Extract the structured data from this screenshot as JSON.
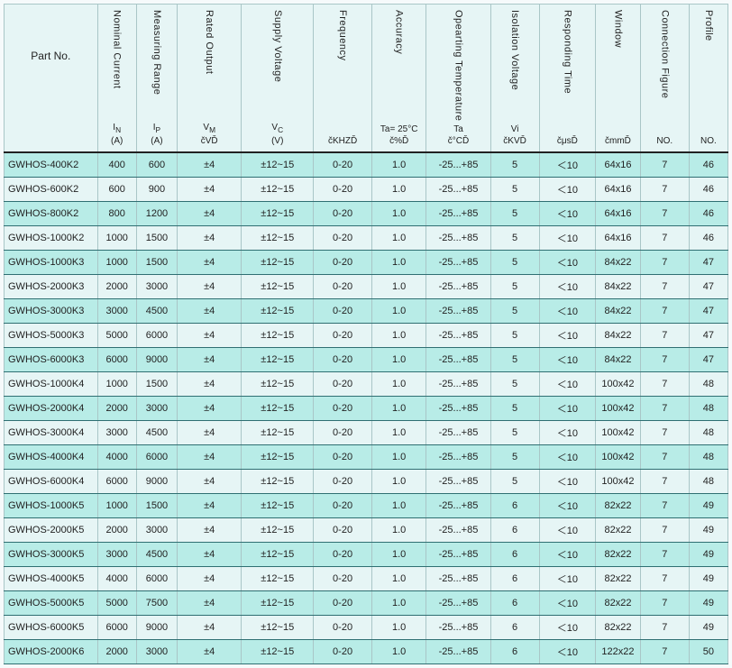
{
  "headers": [
    {
      "top": "",
      "mid": "Part No.",
      "sub": ""
    },
    {
      "top": "Nominal Current",
      "mid": "I<sub>N</sub>",
      "sub": "(A)"
    },
    {
      "top": "Measuring Range",
      "mid": "I<sub>P</sub>",
      "sub": "(A)"
    },
    {
      "top": "Rated Output",
      "mid": "V<sub>M</sub>",
      "sub": "čVĎ"
    },
    {
      "top": "Supply Voltage",
      "mid": "V<sub>C</sub>",
      "sub": "(V)"
    },
    {
      "top": "Frequency",
      "mid": "",
      "sub": "čKHZĎ"
    },
    {
      "top": "Accuracy",
      "mid": "Ta= 25°C",
      "sub": "č%Ď"
    },
    {
      "top": "Opearting Temperature",
      "mid": "Ta",
      "sub": "č°CĎ"
    },
    {
      "top": "Isolation Voltage",
      "mid": "Vi",
      "sub": "čKVĎ"
    },
    {
      "top": "Responding Time",
      "mid": "",
      "sub": "čμsĎ"
    },
    {
      "top": "Window",
      "mid": "",
      "sub": "čmmĎ"
    },
    {
      "top": "Connection Figure",
      "mid": "",
      "sub": "NO."
    },
    {
      "top": "Profile",
      "mid": "",
      "sub": "NO."
    }
  ],
  "rows": [
    [
      "GWHOS-400K2",
      "400",
      "600",
      "±4",
      "±12~15",
      "0-20",
      "1.0",
      "-25...+85",
      "5",
      "＜10",
      "64x16",
      "7",
      "46"
    ],
    [
      "GWHOS-600K2",
      "600",
      "900",
      "±4",
      "±12~15",
      "0-20",
      "1.0",
      "-25...+85",
      "5",
      "＜10",
      "64x16",
      "7",
      "46"
    ],
    [
      "GWHOS-800K2",
      "800",
      "1200",
      "±4",
      "±12~15",
      "0-20",
      "1.0",
      "-25...+85",
      "5",
      "＜10",
      "64x16",
      "7",
      "46"
    ],
    [
      "GWHOS-1000K2",
      "1000",
      "1500",
      "±4",
      "±12~15",
      "0-20",
      "1.0",
      "-25...+85",
      "5",
      "＜10",
      "64x16",
      "7",
      "46"
    ],
    [
      "GWHOS-1000K3",
      "1000",
      "1500",
      "±4",
      "±12~15",
      "0-20",
      "1.0",
      "-25...+85",
      "5",
      "＜10",
      "84x22",
      "7",
      "47"
    ],
    [
      "GWHOS-2000K3",
      "2000",
      "3000",
      "±4",
      "±12~15",
      "0-20",
      "1.0",
      "-25...+85",
      "5",
      "＜10",
      "84x22",
      "7",
      "47"
    ],
    [
      "GWHOS-3000K3",
      "3000",
      "4500",
      "±4",
      "±12~15",
      "0-20",
      "1.0",
      "-25...+85",
      "5",
      "＜10",
      "84x22",
      "7",
      "47"
    ],
    [
      "GWHOS-5000K3",
      "5000",
      "6000",
      "±4",
      "±12~15",
      "0-20",
      "1.0",
      "-25...+85",
      "5",
      "＜10",
      "84x22",
      "7",
      "47"
    ],
    [
      "GWHOS-6000K3",
      "6000",
      "9000",
      "±4",
      "±12~15",
      "0-20",
      "1.0",
      "-25...+85",
      "5",
      "＜10",
      "84x22",
      "7",
      "47"
    ],
    [
      "GWHOS-1000K4",
      "1000",
      "1500",
      "±4",
      "±12~15",
      "0-20",
      "1.0",
      "-25...+85",
      "5",
      "＜10",
      "100x42",
      "7",
      "48"
    ],
    [
      "GWHOS-2000K4",
      "2000",
      "3000",
      "±4",
      "±12~15",
      "0-20",
      "1.0",
      "-25...+85",
      "5",
      "＜10",
      "100x42",
      "7",
      "48"
    ],
    [
      "GWHOS-3000K4",
      "3000",
      "4500",
      "±4",
      "±12~15",
      "0-20",
      "1.0",
      "-25...+85",
      "5",
      "＜10",
      "100x42",
      "7",
      "48"
    ],
    [
      "GWHOS-4000K4",
      "4000",
      "6000",
      "±4",
      "±12~15",
      "0-20",
      "1.0",
      "-25...+85",
      "5",
      "＜10",
      "100x42",
      "7",
      "48"
    ],
    [
      "GWHOS-6000K4",
      "6000",
      "9000",
      "±4",
      "±12~15",
      "0-20",
      "1.0",
      "-25...+85",
      "5",
      "＜10",
      "100x42",
      "7",
      "48"
    ],
    [
      "GWHOS-1000K5",
      "1000",
      "1500",
      "±4",
      "±12~15",
      "0-20",
      "1.0",
      "-25...+85",
      "6",
      "＜10",
      "82x22",
      "7",
      "49"
    ],
    [
      "GWHOS-2000K5",
      "2000",
      "3000",
      "±4",
      "±12~15",
      "0-20",
      "1.0",
      "-25...+85",
      "6",
      "＜10",
      "82x22",
      "7",
      "49"
    ],
    [
      "GWHOS-3000K5",
      "3000",
      "4500",
      "±4",
      "±12~15",
      "0-20",
      "1.0",
      "-25...+85",
      "6",
      "＜10",
      "82x22",
      "7",
      "49"
    ],
    [
      "GWHOS-4000K5",
      "4000",
      "6000",
      "±4",
      "±12~15",
      "0-20",
      "1.0",
      "-25...+85",
      "6",
      "＜10",
      "82x22",
      "7",
      "49"
    ],
    [
      "GWHOS-5000K5",
      "5000",
      "7500",
      "±4",
      "±12~15",
      "0-20",
      "1.0",
      "-25...+85",
      "6",
      "＜10",
      "82x22",
      "7",
      "49"
    ],
    [
      "GWHOS-6000K5",
      "6000",
      "9000",
      "±4",
      "±12~15",
      "0-20",
      "1.0",
      "-25...+85",
      "6",
      "＜10",
      "82x22",
      "7",
      "49"
    ],
    [
      "GWHOS-2000K6",
      "2000",
      "3000",
      "±4",
      "±12~15",
      "0-20",
      "1.0",
      "-25...+85",
      "6",
      "＜10",
      "122x22",
      "7",
      "50"
    ]
  ]
}
